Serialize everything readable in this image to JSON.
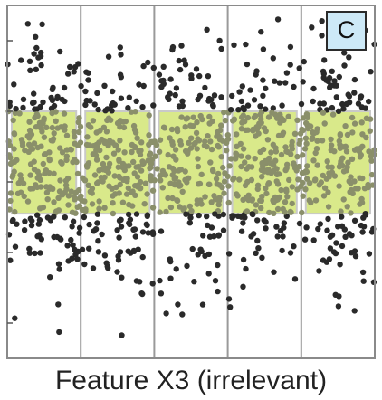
{
  "chart_data": {
    "type": "scatter",
    "title": "",
    "panel_label": "C",
    "xlabel": "Feature X3 (irrelevant)",
    "ylabel": "",
    "x_partitions": 5,
    "xlim": [
      0,
      5
    ],
    "ylim": [
      0,
      1
    ],
    "highlight_band": {
      "y_range": [
        0.41,
        0.7
      ],
      "color": "#d9e98a"
    },
    "grid": "vertical",
    "point_colors": {
      "outside_band": "#2a2a2a",
      "inside_band": "#8a8f6a"
    },
    "n_points_estimate": 1200
  }
}
